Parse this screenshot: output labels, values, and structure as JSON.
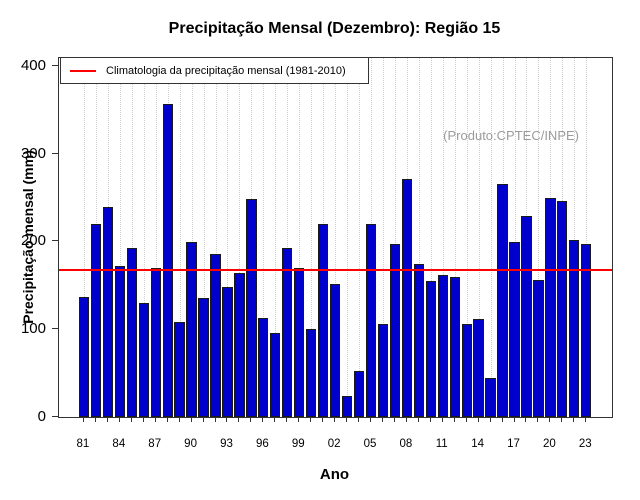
{
  "title": "Precipitação Mensal (Dezembro): Região 15",
  "watermark": "(Produto:CPTEC/INPE)",
  "legend": {
    "label": "Climatologia da precipitação mensal (1981-2010)",
    "line_color": "#ff0000"
  },
  "axes": {
    "y_label": "Precipitação mensal (mm)",
    "x_label": "Ano",
    "y_ticks": [
      0,
      100,
      200,
      300,
      400
    ],
    "x_tick_labels": [
      "81",
      "84",
      "87",
      "90",
      "93",
      "96",
      "99",
      "02",
      "05",
      "08",
      "11",
      "14",
      "17",
      "20",
      "23"
    ]
  },
  "colors": {
    "bar_fill": "#0000cc",
    "bar_border": "#1a1a1a",
    "climatology_line": "#ff0000",
    "grid": "#cfcfcf",
    "axis": "#333333",
    "watermark_text": "#9b9b9b"
  },
  "chart_data": {
    "type": "bar",
    "title": "Precipitação Mensal (Dezembro): Região 15",
    "xlabel": "Ano",
    "ylabel": "Precipitação mensal (mm)",
    "ylim": [
      0,
      410
    ],
    "grid": "vertical-dotted",
    "legend_position": "top-left",
    "years": [
      1981,
      1982,
      1983,
      1984,
      1985,
      1986,
      1987,
      1988,
      1989,
      1990,
      1991,
      1992,
      1993,
      1994,
      1995,
      1996,
      1997,
      1998,
      1999,
      2000,
      2001,
      2002,
      2003,
      2004,
      2005,
      2006,
      2007,
      2008,
      2009,
      2010,
      2011,
      2012,
      2013,
      2014,
      2015,
      2016,
      2017,
      2018,
      2019,
      2020,
      2021,
      2022,
      2023
    ],
    "values": [
      137,
      221,
      240,
      172,
      193,
      130,
      170,
      357,
      109,
      200,
      136,
      186,
      148,
      165,
      249,
      113,
      96,
      193,
      170,
      100,
      221,
      152,
      24,
      52,
      221,
      106,
      198,
      272,
      175,
      155,
      162,
      160,
      106,
      112,
      45,
      266,
      200,
      230,
      156,
      250,
      247,
      202,
      198
    ],
    "climatology": 168,
    "climatology_period": "1981-2010",
    "x_tick_step": 3
  }
}
